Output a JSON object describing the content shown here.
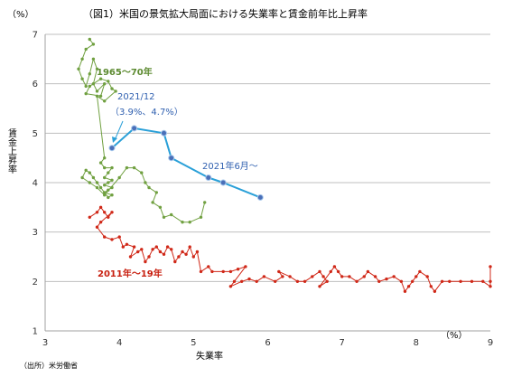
{
  "chart_data": {
    "type": "scatter",
    "title": "（図1）米国の景気拡大局面における失業率と賃金前年比上昇率",
    "xlabel": "失業率",
    "ylabel": "賃金上昇率",
    "x_unit": "（%）",
    "y_unit": "（%）",
    "xlim": [
      3,
      9
    ],
    "ylim": [
      1,
      7
    ],
    "x_ticks": [
      "3",
      "4",
      "5",
      "6",
      "7",
      "8",
      "9"
    ],
    "y_ticks": [
      "1",
      "2",
      "3",
      "4",
      "5",
      "6",
      "7"
    ],
    "grid": true,
    "source": "（出所）米労働省",
    "annotations": {
      "g1965": "1965〜70年",
      "g2011": "2011年〜19年",
      "g2021": "2021年6月〜",
      "callout_line1": "2021/12",
      "callout_line2": "（3.9%、4.7%）"
    },
    "series": [
      {
        "color": "#70a040",
        "points": [
          [
            3.6,
            6.9
          ],
          [
            3.65,
            6.8
          ],
          [
            3.55,
            6.7
          ],
          [
            3.5,
            6.5
          ],
          [
            3.45,
            6.3
          ],
          [
            3.5,
            6.1
          ],
          [
            3.55,
            5.95
          ],
          [
            3.6,
            6.2
          ],
          [
            3.65,
            6.5
          ],
          [
            3.7,
            6.3
          ],
          [
            3.65,
            6.0
          ],
          [
            3.7,
            5.85
          ],
          [
            3.8,
            6.0
          ],
          [
            3.75,
            5.75
          ],
          [
            3.55,
            5.8
          ],
          [
            3.6,
            5.95
          ],
          [
            3.75,
            6.1
          ],
          [
            3.85,
            6.05
          ],
          [
            3.9,
            5.9
          ],
          [
            3.95,
            5.85
          ],
          [
            3.8,
            5.65
          ],
          [
            3.7,
            5.75
          ],
          [
            3.8,
            4.5
          ],
          [
            3.75,
            4.4
          ],
          [
            3.8,
            4.3
          ],
          [
            3.9,
            4.3
          ],
          [
            3.85,
            4.2
          ],
          [
            3.8,
            4.1
          ],
          [
            3.9,
            4.05
          ],
          [
            3.85,
            4.0
          ],
          [
            3.8,
            3.95
          ],
          [
            3.9,
            3.9
          ],
          [
            3.85,
            3.85
          ],
          [
            3.8,
            3.8
          ],
          [
            3.9,
            3.75
          ],
          [
            3.85,
            3.7
          ],
          [
            3.75,
            3.9
          ],
          [
            3.7,
            4.0
          ],
          [
            3.65,
            4.1
          ],
          [
            3.6,
            4.2
          ],
          [
            3.55,
            4.25
          ],
          [
            3.5,
            4.1
          ],
          [
            3.6,
            4.0
          ],
          [
            3.7,
            3.9
          ],
          [
            3.8,
            3.75
          ],
          [
            4.0,
            4.1
          ],
          [
            4.1,
            4.3
          ],
          [
            4.2,
            4.3
          ],
          [
            4.3,
            4.2
          ],
          [
            4.35,
            4.0
          ],
          [
            4.4,
            3.9
          ],
          [
            4.5,
            3.8
          ],
          [
            4.45,
            3.6
          ],
          [
            4.55,
            3.5
          ],
          [
            4.6,
            3.3
          ],
          [
            4.7,
            3.35
          ],
          [
            4.85,
            3.2
          ],
          [
            4.95,
            3.2
          ],
          [
            5.1,
            3.3
          ],
          [
            5.15,
            3.6
          ]
        ]
      },
      {
        "color": "#d02818",
        "points": [
          [
            3.6,
            3.3
          ],
          [
            3.7,
            3.4
          ],
          [
            3.75,
            3.5
          ],
          [
            3.8,
            3.4
          ],
          [
            3.85,
            3.3
          ],
          [
            3.9,
            3.4
          ],
          [
            3.75,
            3.2
          ],
          [
            3.7,
            3.1
          ],
          [
            3.8,
            2.9
          ],
          [
            3.9,
            2.85
          ],
          [
            4.0,
            2.9
          ],
          [
            4.05,
            2.7
          ],
          [
            4.1,
            2.75
          ],
          [
            4.2,
            2.7
          ],
          [
            4.15,
            2.5
          ],
          [
            4.25,
            2.6
          ],
          [
            4.3,
            2.65
          ],
          [
            4.35,
            2.4
          ],
          [
            4.4,
            2.5
          ],
          [
            4.45,
            2.65
          ],
          [
            4.5,
            2.7
          ],
          [
            4.55,
            2.6
          ],
          [
            4.6,
            2.55
          ],
          [
            4.65,
            2.7
          ],
          [
            4.7,
            2.65
          ],
          [
            4.75,
            2.4
          ],
          [
            4.8,
            2.5
          ],
          [
            4.85,
            2.6
          ],
          [
            4.9,
            2.55
          ],
          [
            4.95,
            2.7
          ],
          [
            5.0,
            2.5
          ],
          [
            5.05,
            2.6
          ],
          [
            5.1,
            2.2
          ],
          [
            5.2,
            2.3
          ],
          [
            5.25,
            2.2
          ],
          [
            5.4,
            2.2
          ],
          [
            5.5,
            2.2
          ],
          [
            5.6,
            2.25
          ],
          [
            5.7,
            2.3
          ],
          [
            5.55,
            2.0
          ],
          [
            5.5,
            1.9
          ],
          [
            5.65,
            2.0
          ],
          [
            5.75,
            2.05
          ],
          [
            5.85,
            2.0
          ],
          [
            5.95,
            2.1
          ],
          [
            6.1,
            2.0
          ],
          [
            6.2,
            2.1
          ],
          [
            6.15,
            2.2
          ],
          [
            6.3,
            2.1
          ],
          [
            6.4,
            2.0
          ],
          [
            6.5,
            2.0
          ],
          [
            6.6,
            2.1
          ],
          [
            6.7,
            2.2
          ],
          [
            6.75,
            2.1
          ],
          [
            6.8,
            2.0
          ],
          [
            6.7,
            1.9
          ],
          [
            6.85,
            2.2
          ],
          [
            6.9,
            2.3
          ],
          [
            6.95,
            2.2
          ],
          [
            7.0,
            2.1
          ],
          [
            7.1,
            2.1
          ],
          [
            7.2,
            2.0
          ],
          [
            7.3,
            2.1
          ],
          [
            7.35,
            2.2
          ],
          [
            7.45,
            2.1
          ],
          [
            7.5,
            2.0
          ],
          [
            7.6,
            2.05
          ],
          [
            7.7,
            2.1
          ],
          [
            7.8,
            2.0
          ],
          [
            7.85,
            1.8
          ],
          [
            7.9,
            1.9
          ],
          [
            7.95,
            2.0
          ],
          [
            8.0,
            2.1
          ],
          [
            8.05,
            2.2
          ],
          [
            8.15,
            2.1
          ],
          [
            8.2,
            1.9
          ],
          [
            8.25,
            1.8
          ],
          [
            8.35,
            2.0
          ],
          [
            8.45,
            2.0
          ],
          [
            8.6,
            2.0
          ],
          [
            8.75,
            2.0
          ],
          [
            8.9,
            2.0
          ],
          [
            9.0,
            1.9
          ],
          [
            9.0,
            2.0
          ],
          [
            9.0,
            2.3
          ]
        ]
      },
      {
        "color": "#2aa0d8",
        "marker_color": "#4a6fb8",
        "points": [
          [
            3.9,
            4.7
          ],
          [
            4.2,
            5.1
          ],
          [
            4.6,
            5.0
          ],
          [
            4.7,
            4.5
          ],
          [
            5.2,
            4.1
          ],
          [
            5.4,
            4.0
          ],
          [
            5.9,
            3.7
          ]
        ]
      }
    ]
  }
}
